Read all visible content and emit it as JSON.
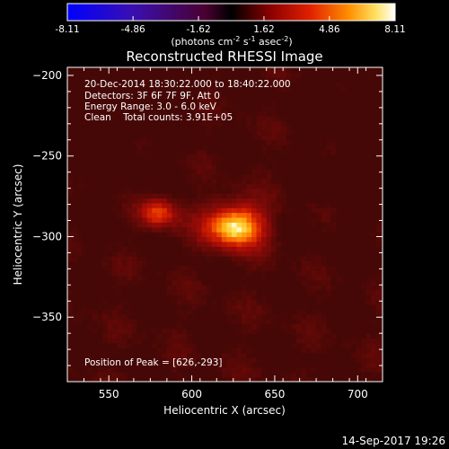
{
  "colorbar": {
    "ticks": [
      "-8.11",
      "-4.86",
      "-1.62",
      "1.62",
      "4.86",
      "8.11"
    ],
    "tick_values": [
      -8.11,
      -4.86,
      -1.62,
      1.62,
      4.86,
      8.11
    ],
    "range": [
      -8.11,
      8.11
    ],
    "units_main": "(photons cm",
    "units_exp1": "-2",
    "units_mid": " s",
    "units_exp2": "-1",
    "units_end": " asec",
    "units_exp3": "-2",
    "units_close": ")",
    "colormap": "red-temperature with blue/purple negatives"
  },
  "chart_data": {
    "type": "heatmap",
    "title": "Reconstructed RHESSI Image",
    "xlabel": "Heliocentric X (arcsec)",
    "ylabel": "Heliocentric Y (arcsec)",
    "xlim": [
      525,
      715
    ],
    "ylim": [
      -390,
      -195
    ],
    "xticks": [
      550,
      600,
      650,
      700
    ],
    "yticks": [
      -200,
      -250,
      -300,
      -350
    ],
    "xtick_labels": [
      "550",
      "600",
      "650",
      "700"
    ],
    "ytick_labels": [
      "−200",
      "−250",
      "−300",
      "−350"
    ],
    "info_lines": [
      "20-Dec-2014 18:30:22.000 to 18:40:22.000",
      "Detectors: 3F 6F 7F 9F, Att 0",
      "Energy Range: 3.0 - 6.0 keV",
      "Clean    Total counts: 3.91E+05"
    ],
    "peak_label": "Position of Peak = [626,-293]",
    "peak": [
      626,
      -293
    ],
    "sources": [
      {
        "x": 626,
        "y": -293,
        "sx": 13,
        "sy": 10,
        "amp": 8.11
      },
      {
        "x": 580,
        "y": -285,
        "sx": 8,
        "sy": 7,
        "amp": 5.2
      }
    ]
  },
  "footer": {
    "timestamp": "14-Sep-2017 19:26"
  }
}
